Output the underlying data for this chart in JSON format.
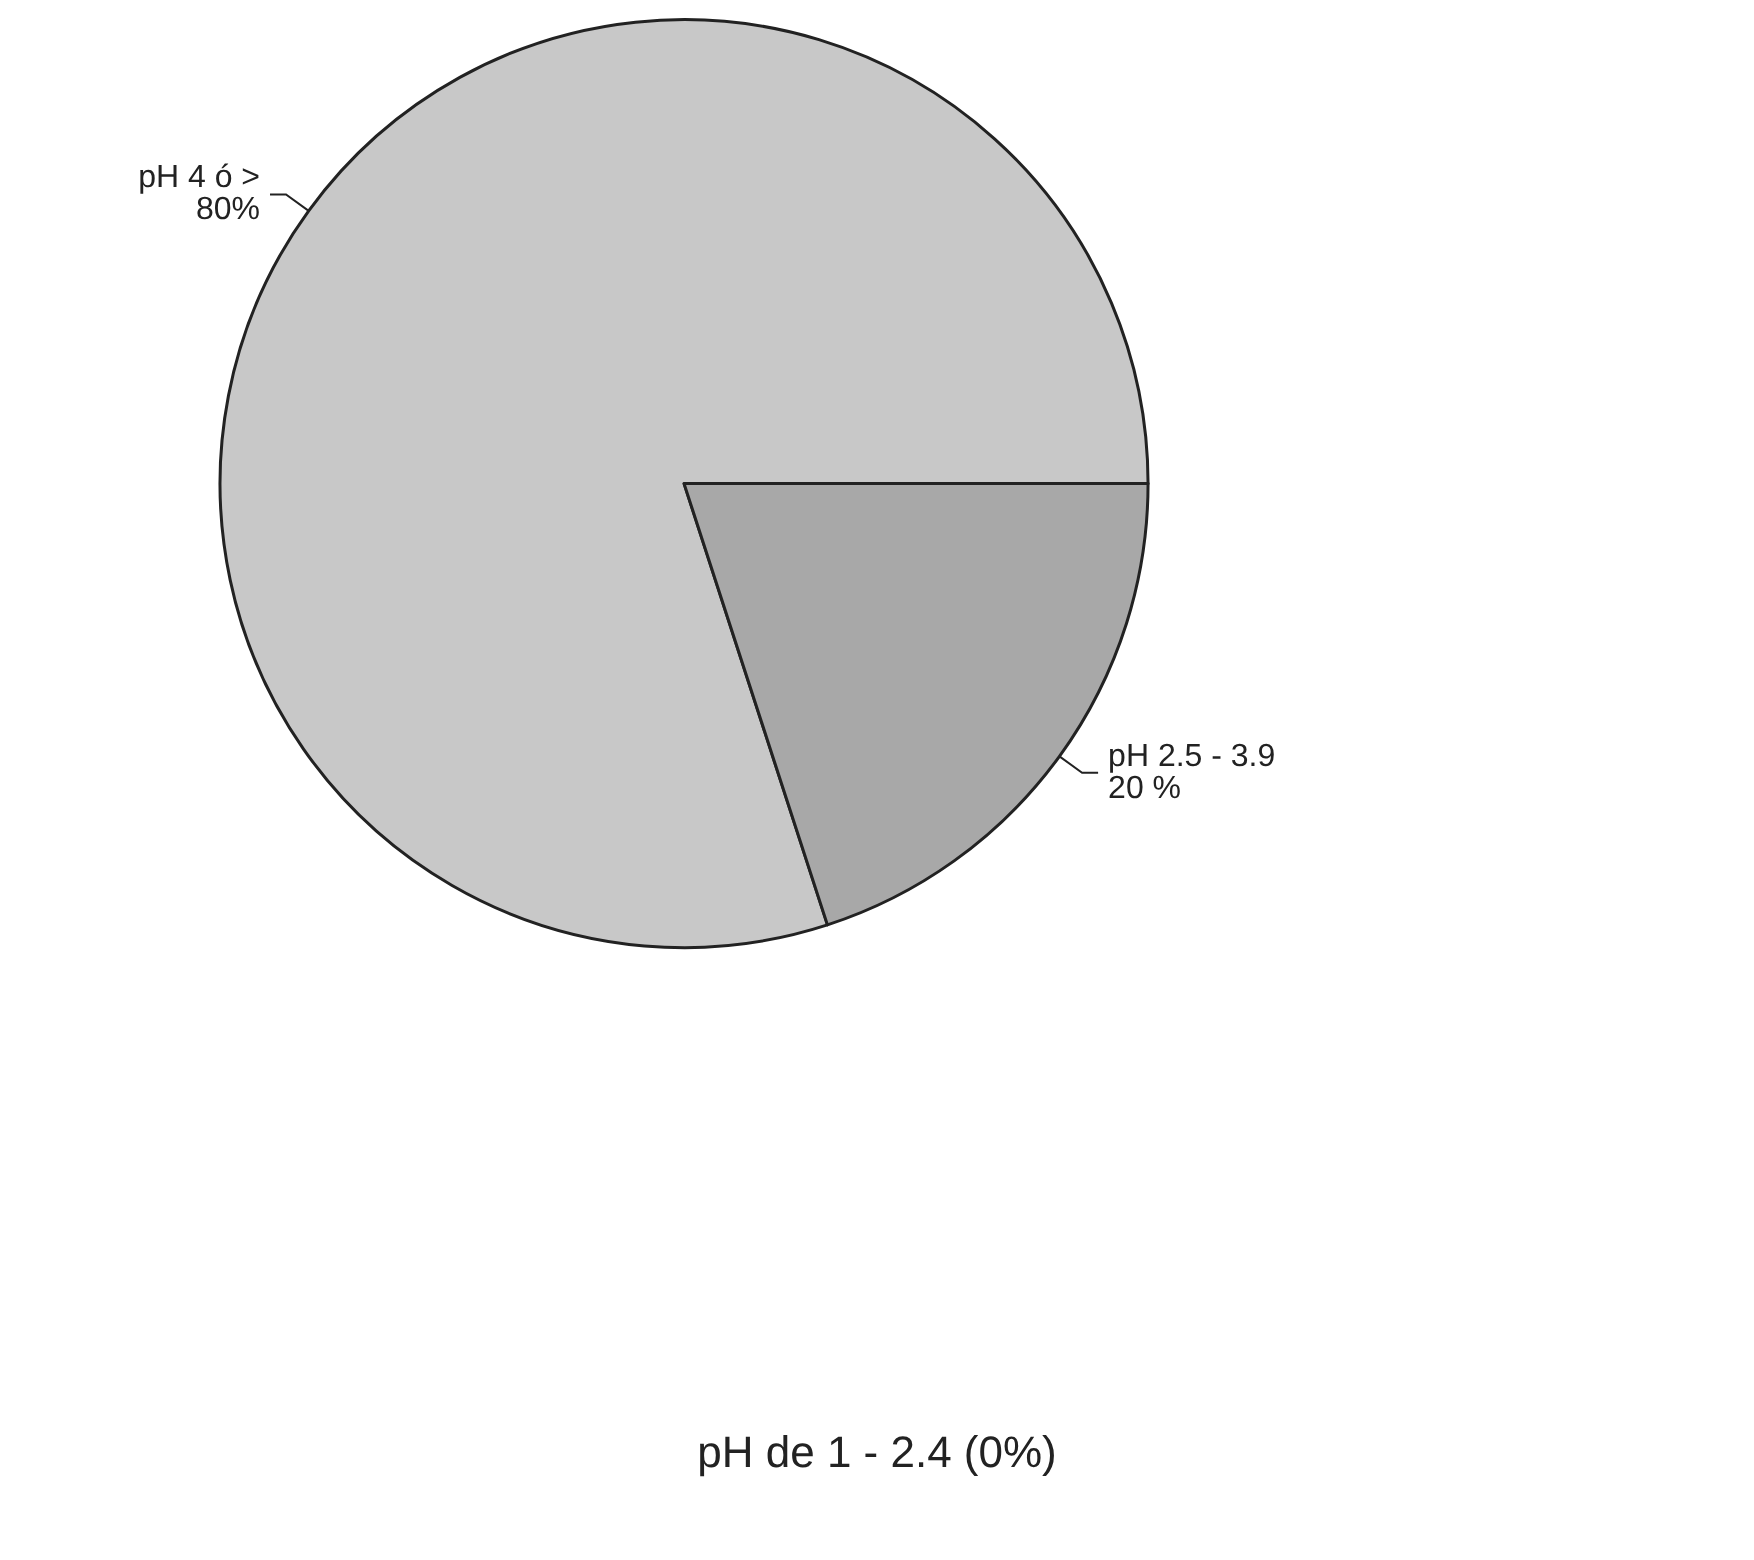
{
  "chart_data": {
    "type": "pie",
    "categories": [
      "pH 4 ó >",
      "pH 2.5 - 3.9",
      "pH de 1 - 2.4"
    ],
    "values": [
      80,
      20,
      0
    ],
    "value_labels": [
      "80%",
      "20 %",
      "(0%)"
    ],
    "colors": [
      "#c8c8c8",
      "#a8a8a8",
      "#ffffff"
    ],
    "legend": false
  }
}
